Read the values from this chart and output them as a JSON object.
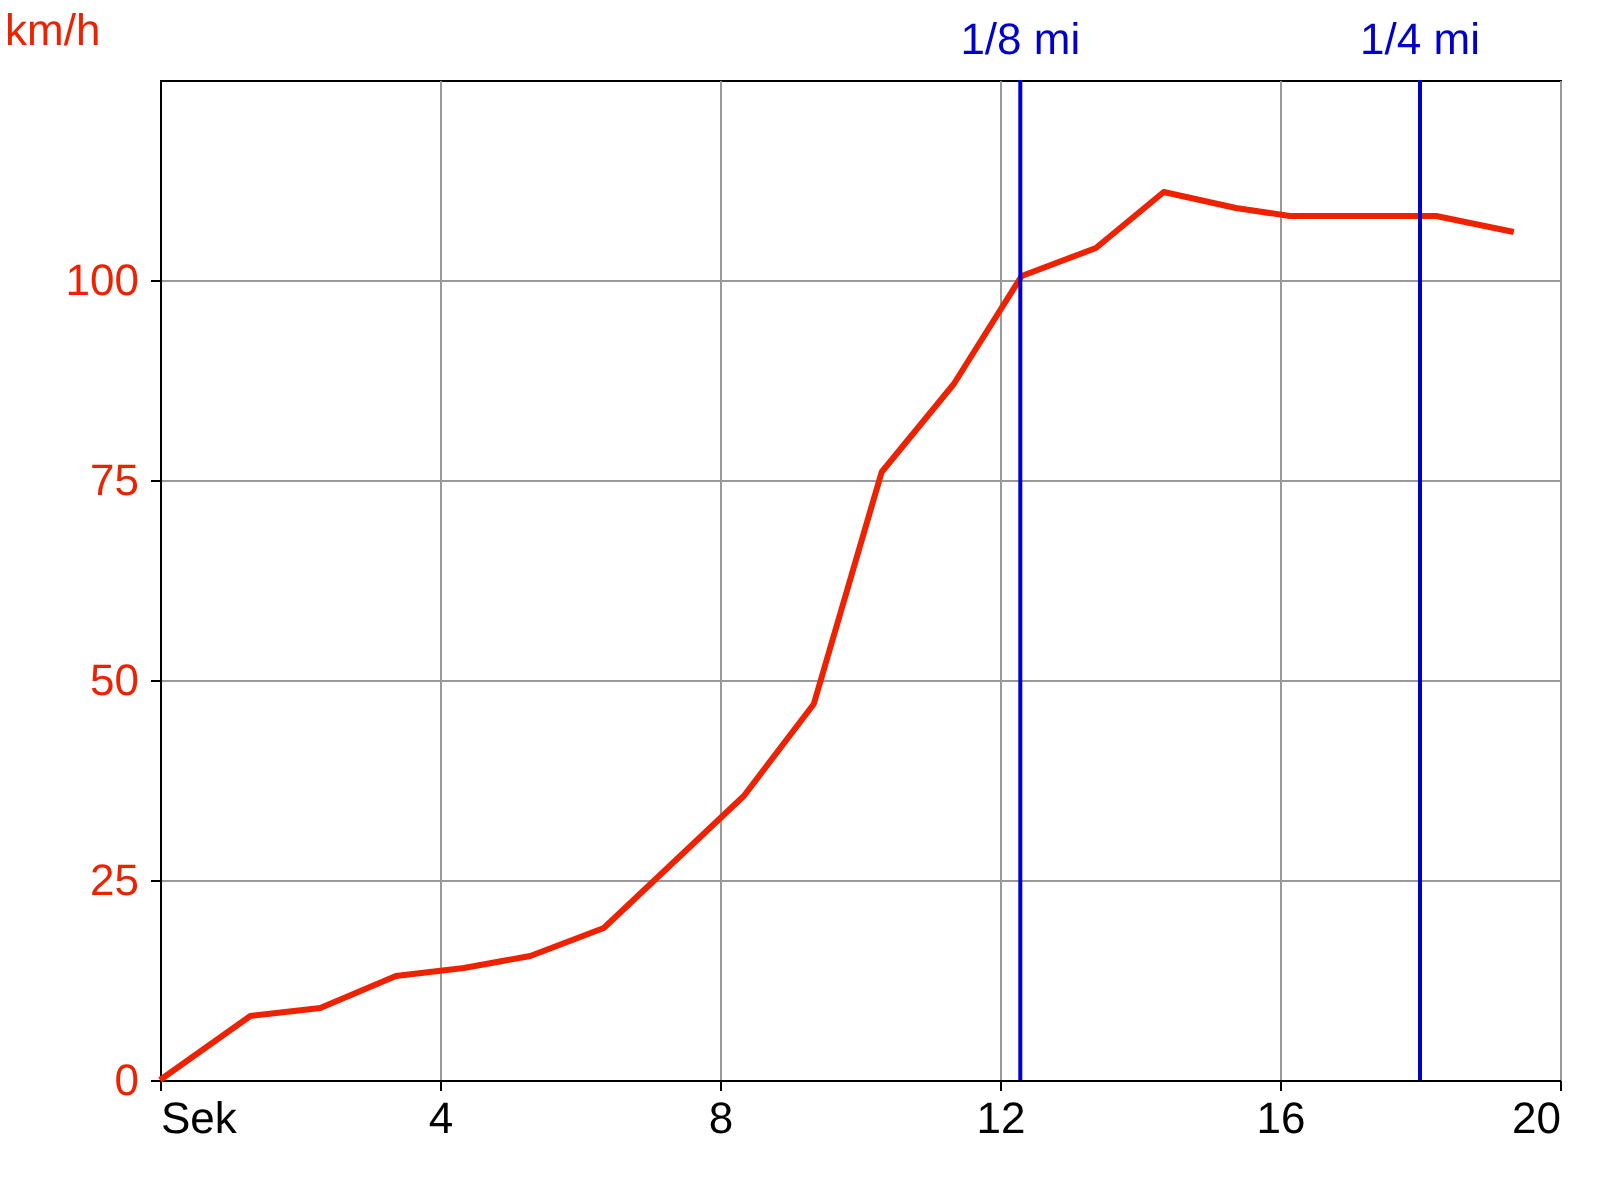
{
  "chart_data": {
    "type": "line",
    "ylabel": "km/h",
    "x": [
      0,
      1.29,
      2.29,
      3.37,
      4.34,
      5.29,
      6.34,
      8.34,
      9.34,
      10.31,
      11.34,
      12.31,
      13.37,
      14.34,
      15.37,
      16.14,
      18.23,
      19.34
    ],
    "series": [
      {
        "color": "#ee2200",
        "values": [
          0,
          8,
          9,
          13,
          14,
          15.5,
          19,
          35.5,
          47,
          76,
          87,
          100.5,
          104,
          111,
          109,
          108,
          108,
          106
        ]
      }
    ],
    "xlim": [
      0,
      20
    ],
    "xticks": [
      {
        "value": 0,
        "label": "Sek"
      },
      4,
      8,
      12,
      16,
      20
    ],
    "ylim": [
      0,
      125
    ],
    "yticks": [
      0,
      25,
      50,
      75,
      100
    ],
    "grid": true,
    "marker": "none",
    "line_style": "solid",
    "ref_lines": [
      {
        "axis": "x",
        "value": 12.29,
        "label": "1/8 mi",
        "color": "#0000cc"
      },
      {
        "axis": "x",
        "value": 18,
        "label": "1/4 mi",
        "color": "#0000cc"
      }
    ]
  }
}
